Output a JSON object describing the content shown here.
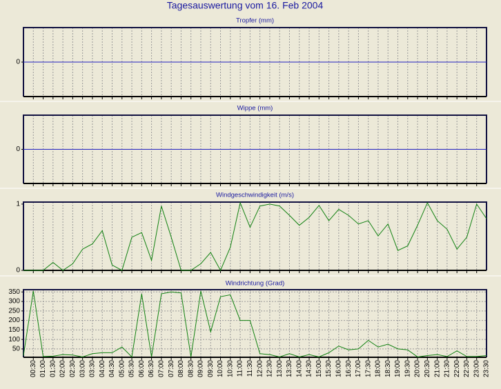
{
  "title": "Tagesauswertung vom 16. Feb 2004",
  "chart_data": [
    {
      "type": "line",
      "title": "Tropfer (mm)",
      "color": "#2020c0",
      "ylim": [
        -1,
        1
      ],
      "yticks": [
        0
      ],
      "xgrid": true,
      "ygrid": false,
      "values": [
        0,
        0,
        0,
        0,
        0,
        0,
        0,
        0,
        0,
        0,
        0,
        0,
        0,
        0,
        0,
        0,
        0,
        0,
        0,
        0,
        0,
        0,
        0,
        0,
        0,
        0,
        0,
        0,
        0,
        0,
        0,
        0,
        0,
        0,
        0,
        0,
        0,
        0,
        0,
        0,
        0,
        0,
        0,
        0,
        0,
        0,
        0,
        0
      ]
    },
    {
      "type": "line",
      "title": "Wippe (mm)",
      "color": "#2020c0",
      "ylim": [
        -1,
        1
      ],
      "yticks": [
        0
      ],
      "xgrid": true,
      "ygrid": false,
      "values": [
        0,
        0,
        0,
        0,
        0,
        0,
        0,
        0,
        0,
        0,
        0,
        0,
        0,
        0,
        0,
        0,
        0,
        0,
        0,
        0,
        0,
        0,
        0,
        0,
        0,
        0,
        0,
        0,
        0,
        0,
        0,
        0,
        0,
        0,
        0,
        0,
        0,
        0,
        0,
        0,
        0,
        0,
        0,
        0,
        0,
        0,
        0,
        0
      ]
    },
    {
      "type": "line",
      "title": "Windgeschwindigkeit (m/s)",
      "color": "#108010",
      "ylim": [
        0,
        1.03
      ],
      "yticks": [
        0,
        1
      ],
      "xgrid": true,
      "ygrid": false,
      "values": [
        0,
        0,
        0,
        0.12,
        0,
        0.1,
        0.32,
        0.4,
        0.6,
        0.08,
        0,
        0.5,
        0.57,
        0.15,
        0.97,
        0.5,
        0,
        0,
        0.1,
        0.27,
        0,
        0.35,
        1.02,
        0.65,
        0.97,
        1.0,
        0.97,
        0.83,
        0.68,
        0.8,
        0.98,
        0.75,
        0.92,
        0.83,
        0.7,
        0.75,
        0.52,
        0.7,
        0.3,
        0.37,
        0.68,
        1.02,
        0.75,
        0.62,
        0.32,
        0.5,
        1.0,
        0.78
      ]
    },
    {
      "type": "line",
      "title": "Windrichtung (Grad)",
      "color": "#108010",
      "ylim": [
        6,
        362
      ],
      "yticks": [
        50,
        100,
        150,
        200,
        250,
        300,
        350
      ],
      "xgrid": true,
      "ygrid": true,
      "categories": [
        null,
        "00:30",
        "01:00",
        "01:30",
        "02:00",
        "02:30",
        "03:00",
        "03:30",
        "04:00",
        "04:30",
        "05:00",
        "05:30",
        "06:00",
        "06:30",
        "07:00",
        "07:30",
        "08:00",
        "08:30",
        "09:00",
        "09:30",
        "10:00",
        "10:30",
        "11:00",
        "11:30",
        "12:00",
        "12:30",
        "13:00",
        "13:30",
        "14:00",
        "14:30",
        "15:00",
        "15:30",
        "16:00",
        "16:30",
        "17:00",
        "17:30",
        "18:00",
        "18:30",
        "19:00",
        "19:30",
        "20:00",
        "20:30",
        "21:00",
        "21:30",
        "22:00",
        "22:30",
        "23:00",
        "23:30"
      ],
      "values": [
        15,
        355,
        10,
        12,
        20,
        18,
        8,
        25,
        30,
        30,
        60,
        8,
        340,
        8,
        340,
        350,
        345,
        8,
        355,
        140,
        325,
        335,
        200,
        200,
        25,
        20,
        8,
        25,
        8,
        20,
        8,
        30,
        65,
        45,
        50,
        95,
        60,
        75,
        50,
        45,
        8,
        15,
        20,
        10,
        40,
        10,
        10,
        15
      ]
    }
  ]
}
